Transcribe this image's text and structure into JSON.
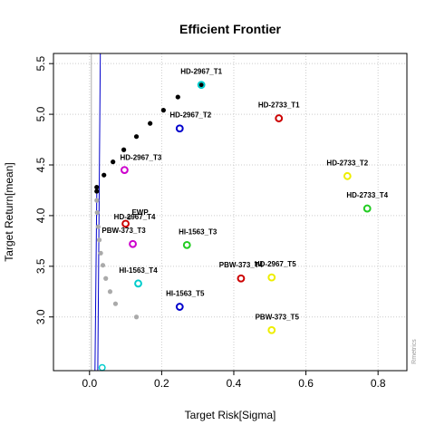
{
  "chart_data": {
    "type": "scatter",
    "title": "Efficient Frontier",
    "xlabel": "Target Risk[Sigma]",
    "ylabel": "Target Return[mean]",
    "xlim": [
      -0.1,
      0.88
    ],
    "ylim": [
      2.47,
      5.6
    ],
    "xticks": [
      0.0,
      0.2,
      0.4,
      0.6,
      0.8
    ],
    "yticks": [
      3.0,
      3.5,
      4.0,
      4.5,
      5.0,
      5.5
    ],
    "xtick_labels": [
      "0.0",
      "0.2",
      "0.4",
      "0.6",
      "0.8"
    ],
    "ytick_labels": [
      "3.0",
      "3.5",
      "4.0",
      "4.5",
      "5.0",
      "5.5"
    ],
    "grid": true,
    "credit": "Rmetrics",
    "frontier_upper": [
      {
        "x": 0.02,
        "y": 4.24
      },
      {
        "x": 0.02,
        "y": 4.28
      },
      {
        "x": 0.04,
        "y": 4.4
      },
      {
        "x": 0.065,
        "y": 4.53
      },
      {
        "x": 0.095,
        "y": 4.65
      },
      {
        "x": 0.13,
        "y": 4.78
      },
      {
        "x": 0.168,
        "y": 4.91
      },
      {
        "x": 0.205,
        "y": 5.04
      },
      {
        "x": 0.245,
        "y": 5.17
      },
      {
        "x": 0.31,
        "y": 5.29
      }
    ],
    "frontier_lower": [
      {
        "x": 0.02,
        "y": 4.15
      },
      {
        "x": 0.021,
        "y": 4.03
      },
      {
        "x": 0.024,
        "y": 3.89
      },
      {
        "x": 0.027,
        "y": 3.76
      },
      {
        "x": 0.031,
        "y": 3.63
      },
      {
        "x": 0.037,
        "y": 3.51
      },
      {
        "x": 0.045,
        "y": 3.38
      },
      {
        "x": 0.057,
        "y": 3.25
      },
      {
        "x": 0.072,
        "y": 3.13
      },
      {
        "x": 0.13,
        "y": 3.0
      }
    ],
    "boundary_lines": [
      {
        "color": "#0000cc",
        "points": [
          {
            "x": 0.02,
            "y": 4.22
          },
          {
            "x": 0.015,
            "y": 2.47
          },
          {
            "x": 0.023,
            "y": 2.47
          },
          {
            "x": 0.03,
            "y": 5.6
          }
        ]
      },
      {
        "color": "#aaaaaa",
        "points": [
          {
            "x": 0.005,
            "y": 2.47
          },
          {
            "x": 0.005,
            "y": 5.6
          }
        ]
      }
    ],
    "assets": [
      {
        "label": "HD-2967_T1",
        "x": 0.31,
        "y": 5.29,
        "color": "#00cccc",
        "label_dx": 0,
        "label_dy": -12
      },
      {
        "label": "HD-2733_T1",
        "x": 0.525,
        "y": 4.96,
        "color": "#cc0000",
        "label_dx": 0,
        "label_dy": -12
      },
      {
        "label": "HD-2967_T2",
        "x": 0.25,
        "y": 4.86,
        "color": "#0000cc",
        "label_dx": 12,
        "label_dy": -12
      },
      {
        "label": "HD-2967_T3",
        "x": 0.097,
        "y": 4.45,
        "color": "#cc00cc",
        "label_dx": 18,
        "label_dy": -11
      },
      {
        "label": "HD-2733_T2",
        "x": 0.715,
        "y": 4.39,
        "color": "#eeee00",
        "label_dx": 0,
        "label_dy": -12
      },
      {
        "label": "HD-2733_T4",
        "x": 0.77,
        "y": 4.07,
        "color": "#22cc22",
        "label_dx": 0,
        "label_dy": -12
      },
      {
        "label": "HD-2967_T4",
        "x": 0.1,
        "y": 3.92,
        "color": "#cc0000",
        "label_dx": 10,
        "label_dy": -5
      },
      {
        "label": "PBW-373_T3",
        "x": 0.12,
        "y": 3.72,
        "color": "#cc00cc",
        "label_dx": -10,
        "label_dy": -12
      },
      {
        "label": "HI-1563_T3",
        "x": 0.27,
        "y": 3.71,
        "color": "#22cc22",
        "label_dx": 12,
        "label_dy": -12
      },
      {
        "label": "PBW-373_T4",
        "x": 0.42,
        "y": 3.38,
        "color": "#cc0000",
        "label_dx": 0,
        "label_dy": -12
      },
      {
        "label": "HD-2967_T5",
        "x": 0.505,
        "y": 3.39,
        "color": "#eeee00",
        "label_dx": 4,
        "label_dy": -12
      },
      {
        "label": "HI-1563_T4",
        "x": 0.135,
        "y": 3.33,
        "color": "#00cccc",
        "label_dx": 0,
        "label_dy": -12
      },
      {
        "label": "HI-1563_T5",
        "x": 0.25,
        "y": 3.1,
        "color": "#0000cc",
        "label_dx": 6,
        "label_dy": -12
      },
      {
        "label": "PBW-373_T5",
        "x": 0.505,
        "y": 2.87,
        "color": "#eeee00",
        "label_dx": 6,
        "label_dy": -12
      },
      {
        "label": "EWP",
        "x": 0.11,
        "y": 3.98,
        "color": "#999999",
        "label_dx": 12,
        "label_dy": -3,
        "marker": "dot"
      }
    ],
    "special_points": [
      {
        "x": 0.31,
        "y": 5.29,
        "color": "#000000",
        "kind": "tangency"
      },
      {
        "x": 0.035,
        "y": 2.5,
        "color": "#00cccc",
        "kind": "min"
      }
    ]
  }
}
